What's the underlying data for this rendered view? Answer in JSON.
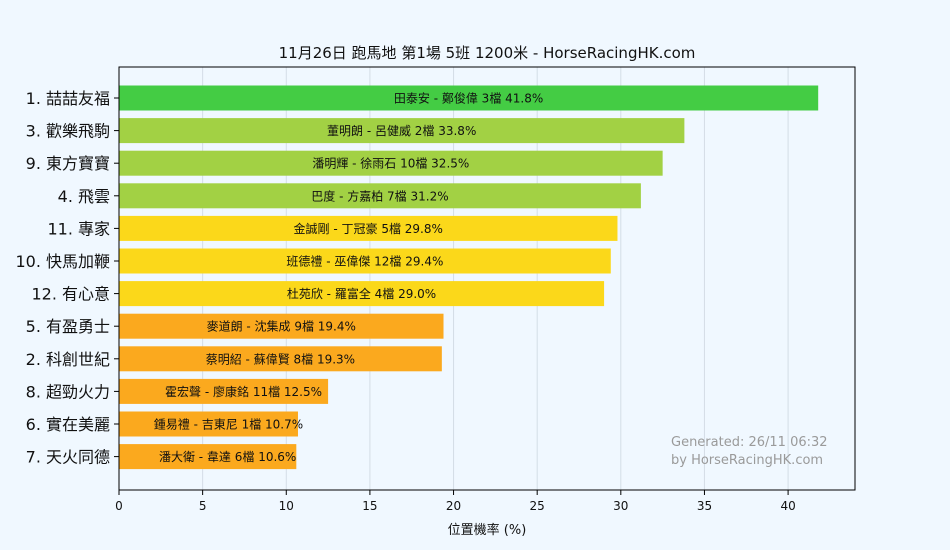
{
  "colors": {
    "background": "#f0f8ff",
    "tier1": "#44cc44",
    "tier2": "#a2d144",
    "tier3": "#fbd81a",
    "tier4": "#fba91e"
  },
  "chart_data": {
    "type": "bar",
    "orientation": "horizontal",
    "title": "11月26日  跑馬地  第1場  5班  1200米 - HorseRacingHK.com",
    "xlabel": "位置機率 (%)",
    "ylabel": "",
    "xlim": [
      0,
      44
    ],
    "xticks": [
      0,
      5,
      10,
      15,
      20,
      25,
      30,
      35,
      40
    ],
    "grid": "vertical",
    "categories": [
      "1. 喆喆友福",
      "3. 歡樂飛駒",
      "9. 東方寶寶",
      "4. 飛雲",
      "11. 專家",
      "10. 快馬加鞭",
      "12. 有心意",
      "5. 有盈勇士",
      "2. 科創世紀",
      "8. 超勁火力",
      "6. 實在美麗",
      "7. 天火同德"
    ],
    "values": [
      41.8,
      33.8,
      32.5,
      31.2,
      29.8,
      29.4,
      29.0,
      19.4,
      19.3,
      12.5,
      10.7,
      10.6
    ],
    "bar_labels": [
      "田泰安 - 鄭俊偉 3檔  41.8%",
      "董明朗 - 呂健威 2檔  33.8%",
      "潘明輝 - 徐雨石 10檔  32.5%",
      "巴度 - 方嘉柏 7檔  31.2%",
      "金誠剛 - 丁冠豪 5檔  29.8%",
      "班德禮 - 巫偉傑 12檔  29.4%",
      "杜苑欣 - 羅富全 4檔  29.0%",
      "麥道朗 - 沈集成 9檔  19.4%",
      "蔡明紹 - 蘇偉賢 8檔  19.3%",
      "霍宏聲 - 廖康銘 11檔  12.5%",
      "鍾易禮 - 吉東尼 1檔  10.7%",
      "潘大衛 - 韋達 6檔  10.6%"
    ],
    "tiers": [
      1,
      2,
      2,
      2,
      3,
      3,
      3,
      4,
      4,
      4,
      4,
      4
    ],
    "watermark": [
      "Generated: 26/11 06:32",
      "by HorseRacingHK.com"
    ]
  }
}
